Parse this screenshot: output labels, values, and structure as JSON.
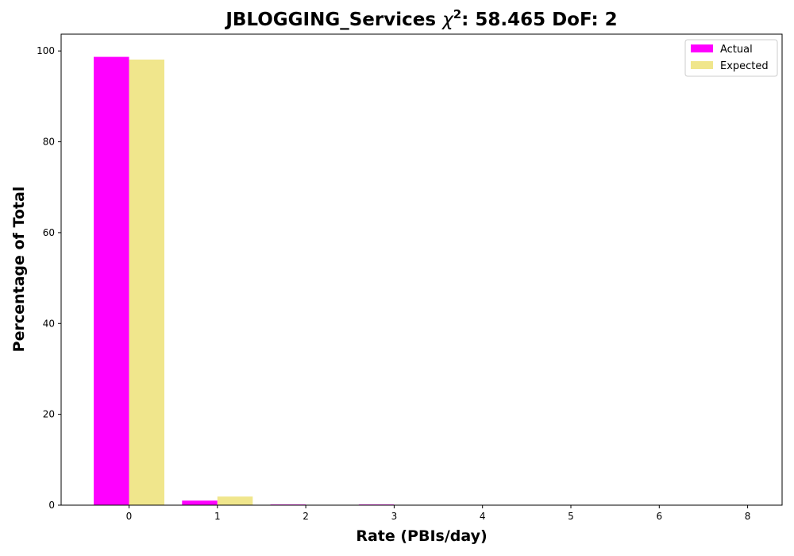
{
  "chart_data": {
    "type": "bar",
    "title_prefix": "JBLOGGING_Services ",
    "title_chi": "χ",
    "title_sup": "2",
    "title_suffix": ": 58.465 DoF: 2",
    "xlabel": "Rate (PBIs/day)",
    "ylabel": "Percentage of Total",
    "categories": [
      "0",
      "1",
      "2",
      "3",
      "4",
      "5",
      "6",
      "8"
    ],
    "series": [
      {
        "name": "Actual",
        "color": "#ff00ff",
        "values": [
          98.7,
          1.0,
          0.15,
          0.15,
          0.0,
          0.0,
          0.0,
          0.0
        ]
      },
      {
        "name": "Expected",
        "color": "#f0e68c",
        "values": [
          98.1,
          1.9,
          0.02,
          0.0,
          0.0,
          0.0,
          0.0,
          0.0
        ]
      }
    ],
    "ylim": [
      0,
      103.7
    ],
    "yticks": [
      0,
      20,
      40,
      60,
      80,
      100
    ],
    "grid": false,
    "legend_position": "top-right"
  }
}
